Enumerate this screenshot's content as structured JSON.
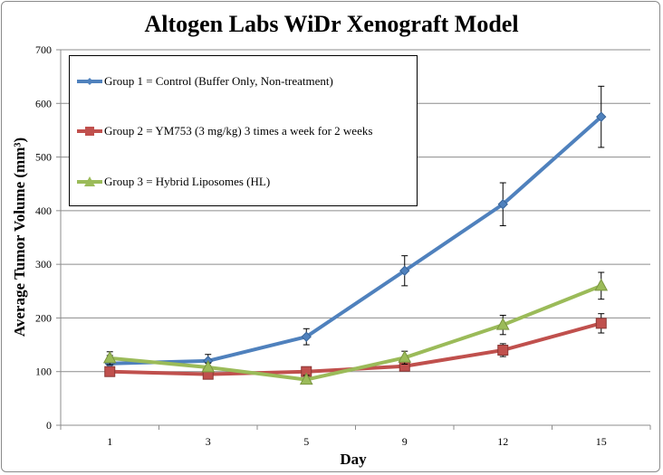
{
  "chart_data": {
    "type": "line",
    "title": "Altogen Labs WiDr Xenograft Model",
    "xlabel": "Day",
    "ylabel": "Average Tumor Volume (mm³)",
    "categories": [
      "1",
      "3",
      "5",
      "9",
      "12",
      "15"
    ],
    "ylim": [
      0,
      700
    ],
    "yticks": [
      0,
      100,
      200,
      300,
      400,
      500,
      600,
      700
    ],
    "grid": true,
    "legend_position": "top-left",
    "series": [
      {
        "name": "Group 1 = Control (Buffer Only, Non-treatment)",
        "color": "#4F81BD",
        "marker": "diamond",
        "values": [
          115,
          120,
          165,
          288,
          412,
          575
        ],
        "errors": [
          15,
          12,
          15,
          28,
          40,
          57
        ]
      },
      {
        "name": "Group 2 = YM753 (3 mg/kg) 3 times a week for 2 weeks",
        "color": "#C0504D",
        "marker": "square",
        "values": [
          100,
          95,
          100,
          110,
          140,
          190
        ],
        "errors": [
          8,
          8,
          8,
          8,
          12,
          18
        ]
      },
      {
        "name": "Group 3 = Hybrid Liposomes (HL)",
        "color": "#9BBB59",
        "marker": "triangle",
        "values": [
          125,
          108,
          85,
          126,
          187,
          260
        ],
        "errors": [
          12,
          8,
          8,
          12,
          18,
          25
        ]
      }
    ]
  }
}
